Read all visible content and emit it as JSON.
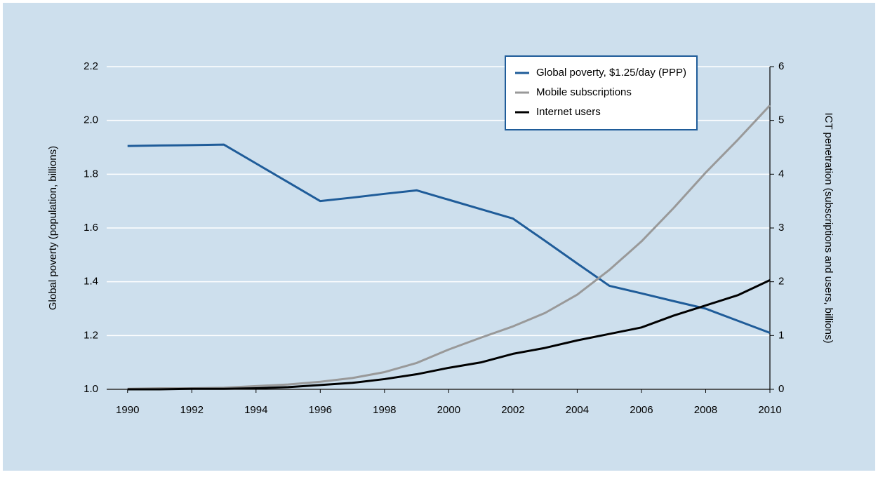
{
  "chart_data": {
    "type": "line",
    "y_label": "Global poverty (population, billions)",
    "y2_label": "ICT penetration (subscriptions and users, billions)",
    "x": [
      1990,
      1991,
      1992,
      1993,
      1994,
      1995,
      1996,
      1997,
      1998,
      1999,
      2000,
      2001,
      2002,
      2003,
      2004,
      2005,
      2006,
      2007,
      2008,
      2009,
      2010
    ],
    "series": [
      {
        "name": "Global poverty, $1.25/day (PPP)",
        "color": "#1f5c99",
        "axis": "y",
        "values": [
          1.905,
          1.907,
          1.908,
          1.91,
          1.84,
          1.77,
          1.7,
          1.713,
          1.727,
          1.74,
          1.705,
          1.67,
          1.635,
          1.552,
          1.468,
          1.385,
          1.357,
          1.328,
          1.3,
          1.255,
          1.21
        ]
      },
      {
        "name": "Mobile subscriptions",
        "color": "#999999",
        "axis": "y2",
        "values": [
          0.01,
          0.02,
          0.02,
          0.03,
          0.06,
          0.09,
          0.14,
          0.21,
          0.32,
          0.49,
          0.74,
          0.96,
          1.17,
          1.42,
          1.76,
          2.22,
          2.75,
          3.37,
          4.03,
          4.64,
          5.28
        ]
      },
      {
        "name": "Internet users",
        "color": "#000000",
        "axis": "y2",
        "values": [
          0,
          0,
          0.01,
          0.01,
          0.02,
          0.04,
          0.08,
          0.12,
          0.19,
          0.28,
          0.4,
          0.5,
          0.66,
          0.77,
          0.91,
          1.03,
          1.15,
          1.37,
          1.56,
          1.75,
          2.03
        ]
      }
    ],
    "xlim": [
      1989.35,
      2010
    ],
    "xticks": [
      1990,
      1992,
      1994,
      1996,
      1998,
      2000,
      2002,
      2004,
      2006,
      2008,
      2010
    ],
    "ylim": [
      1.0,
      2.2
    ],
    "yticks": [
      {
        "value": 1.0,
        "label": "1.0"
      },
      1.2,
      1.4,
      1.6,
      1.8,
      {
        "value": 2.0,
        "label": "2.0"
      },
      2.2
    ],
    "y2lim": [
      0,
      6
    ],
    "y2ticks": [
      0,
      1,
      2,
      3,
      4,
      5,
      6
    ],
    "grid": true,
    "legend": "upper-right"
  }
}
